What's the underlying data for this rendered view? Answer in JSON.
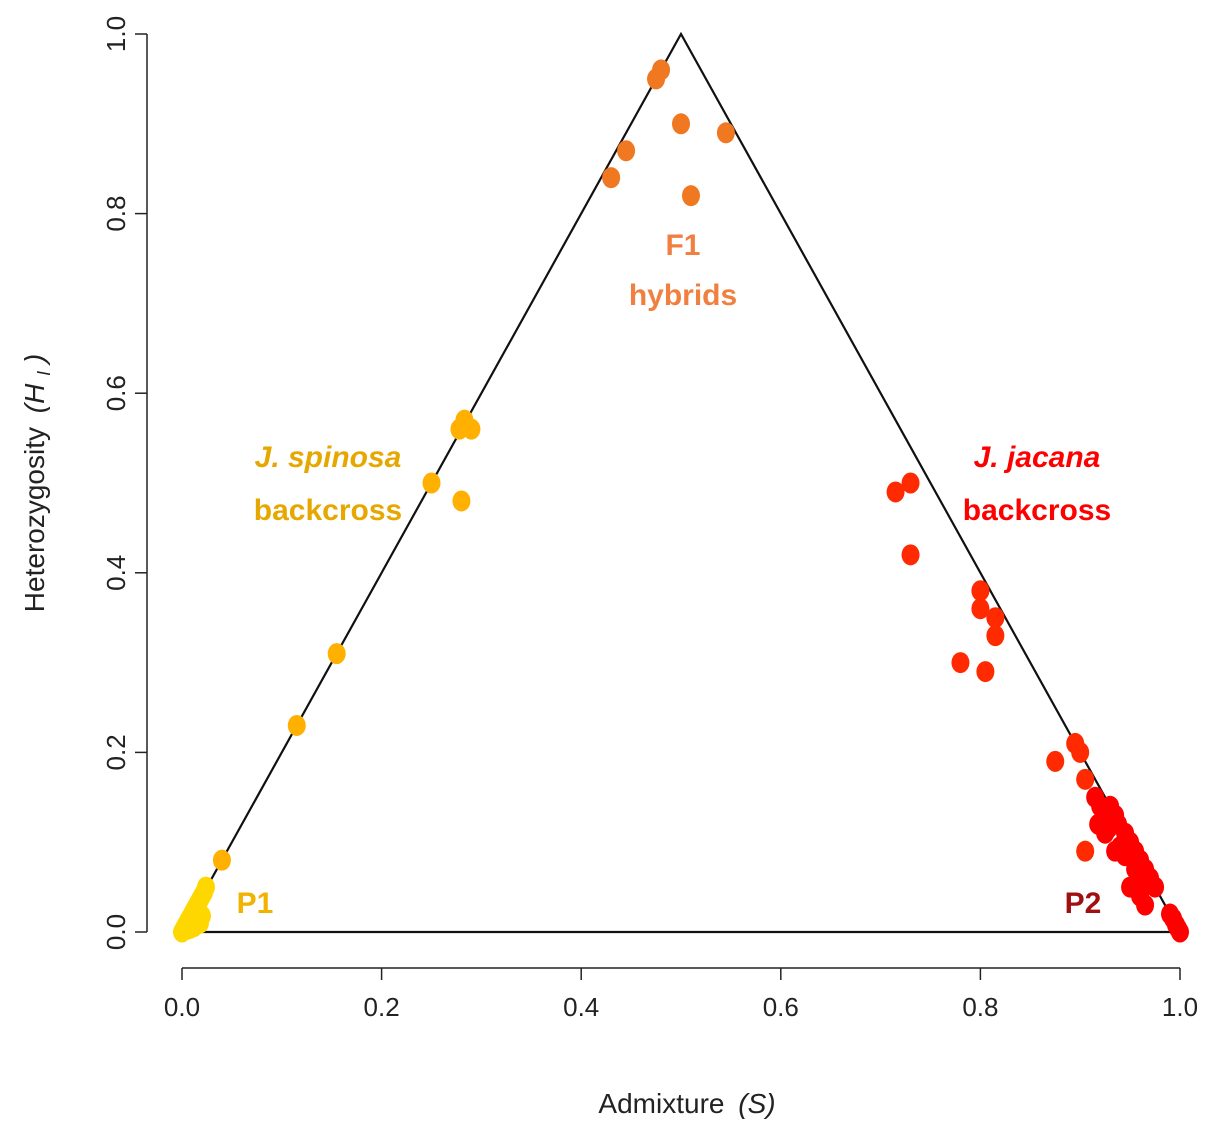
{
  "chart_data": {
    "type": "scatter",
    "title": "",
    "xlabel_main": "Admixture",
    "xlabel_italic": "(S)",
    "ylabel_main": "Heterozygosity",
    "ylabel_italic": "(H",
    "ylabel_sub": "I",
    "ylabel_close": ")",
    "xlim": [
      0,
      1
    ],
    "ylim": [
      0,
      1
    ],
    "xticks": [
      "0.0",
      "0.2",
      "0.4",
      "0.6",
      "0.8",
      "1.0"
    ],
    "yticks": [
      "0.0",
      "0.2",
      "0.4",
      "0.6",
      "0.8",
      "1.0"
    ],
    "grid": false,
    "triangle": [
      [
        0,
        0
      ],
      [
        0.5,
        1
      ],
      [
        1,
        0
      ]
    ],
    "annotations": {
      "f1_line1": "F1",
      "f1_line2": "hybrids",
      "spinosa_line1": "J. spinosa",
      "spinosa_line2": "backcross",
      "jacana_line1": "J. jacana",
      "jacana_line2": "backcross",
      "p1": "P1",
      "p2": "P2"
    },
    "colors": {
      "p1": "#FFD700",
      "spinosa_backcross": "#FFB000",
      "f1": "#F07820",
      "jacana_backcross": "#FF2A00",
      "p2": "#FF0000",
      "f1_label": "#F08040",
      "spinosa_label": "#E6A800",
      "jacana_label": "#FF0000",
      "p1_label": "#F2B200",
      "p2_label": "#A01010",
      "triangle": "#111111"
    },
    "series": [
      {
        "group": "p1",
        "points": [
          [
            0.0,
            0.0
          ],
          [
            0.002,
            0.004
          ],
          [
            0.004,
            0.008
          ],
          [
            0.006,
            0.012
          ],
          [
            0.008,
            0.016
          ],
          [
            0.01,
            0.02
          ],
          [
            0.012,
            0.024
          ],
          [
            0.014,
            0.028
          ],
          [
            0.016,
            0.032
          ],
          [
            0.018,
            0.036
          ],
          [
            0.02,
            0.04
          ],
          [
            0.022,
            0.044
          ],
          [
            0.024,
            0.05
          ],
          [
            0.005,
            0.003
          ],
          [
            0.01,
            0.008
          ],
          [
            0.015,
            0.012
          ],
          [
            0.02,
            0.018
          ],
          [
            0.012,
            0.006
          ],
          [
            0.018,
            0.01
          ],
          [
            0.008,
            0.004
          ]
        ]
      },
      {
        "group": "spinosa_backcross",
        "points": [
          [
            0.04,
            0.08
          ],
          [
            0.115,
            0.23
          ],
          [
            0.155,
            0.31
          ],
          [
            0.25,
            0.5
          ],
          [
            0.28,
            0.48
          ],
          [
            0.278,
            0.56
          ],
          [
            0.283,
            0.57
          ],
          [
            0.29,
            0.56
          ]
        ]
      },
      {
        "group": "f1",
        "points": [
          [
            0.43,
            0.84
          ],
          [
            0.445,
            0.87
          ],
          [
            0.475,
            0.95
          ],
          [
            0.48,
            0.96
          ],
          [
            0.5,
            0.9
          ],
          [
            0.51,
            0.82
          ],
          [
            0.545,
            0.89
          ]
        ]
      },
      {
        "group": "jacana_backcross",
        "points": [
          [
            0.715,
            0.49
          ],
          [
            0.73,
            0.5
          ],
          [
            0.73,
            0.42
          ],
          [
            0.78,
            0.3
          ],
          [
            0.8,
            0.38
          ],
          [
            0.8,
            0.36
          ],
          [
            0.805,
            0.29
          ],
          [
            0.815,
            0.35
          ],
          [
            0.815,
            0.33
          ],
          [
            0.875,
            0.19
          ],
          [
            0.895,
            0.21
          ],
          [
            0.9,
            0.2
          ],
          [
            0.905,
            0.17
          ],
          [
            0.905,
            0.09
          ]
        ]
      },
      {
        "group": "p2",
        "points": [
          [
            0.915,
            0.15
          ],
          [
            0.92,
            0.14
          ],
          [
            0.925,
            0.13
          ],
          [
            0.93,
            0.14
          ],
          [
            0.935,
            0.13
          ],
          [
            0.918,
            0.12
          ],
          [
            0.928,
            0.115
          ],
          [
            0.938,
            0.12
          ],
          [
            0.945,
            0.11
          ],
          [
            0.95,
            0.1
          ],
          [
            0.935,
            0.09
          ],
          [
            0.945,
            0.085
          ],
          [
            0.955,
            0.09
          ],
          [
            0.96,
            0.08
          ],
          [
            0.965,
            0.07
          ],
          [
            0.955,
            0.07
          ],
          [
            0.965,
            0.06
          ],
          [
            0.97,
            0.06
          ],
          [
            0.975,
            0.05
          ],
          [
            0.95,
            0.05
          ],
          [
            0.96,
            0.04
          ],
          [
            0.965,
            0.03
          ],
          [
            0.94,
            0.095
          ],
          [
            0.925,
            0.11
          ],
          [
            0.99,
            0.02
          ],
          [
            0.993,
            0.015
          ],
          [
            0.996,
            0.008
          ],
          [
            0.998,
            0.004
          ],
          [
            1.0,
            0.0
          ]
        ]
      }
    ]
  }
}
